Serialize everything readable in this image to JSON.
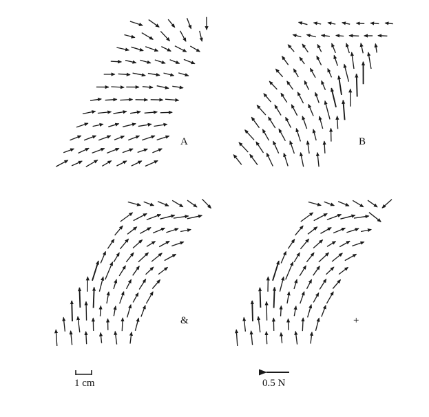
{
  "panels": [
    {
      "id": "A",
      "label": "A"
    },
    {
      "id": "B",
      "label": "B"
    },
    {
      "id": "C",
      "label": "&"
    },
    {
      "id": "D",
      "label": "+"
    }
  ],
  "scale_bars": {
    "length_label": "1 cm",
    "force_label": "0.5 N"
  },
  "colors": {
    "ink": "#1a1a1a",
    "background": "#ffffff"
  }
}
